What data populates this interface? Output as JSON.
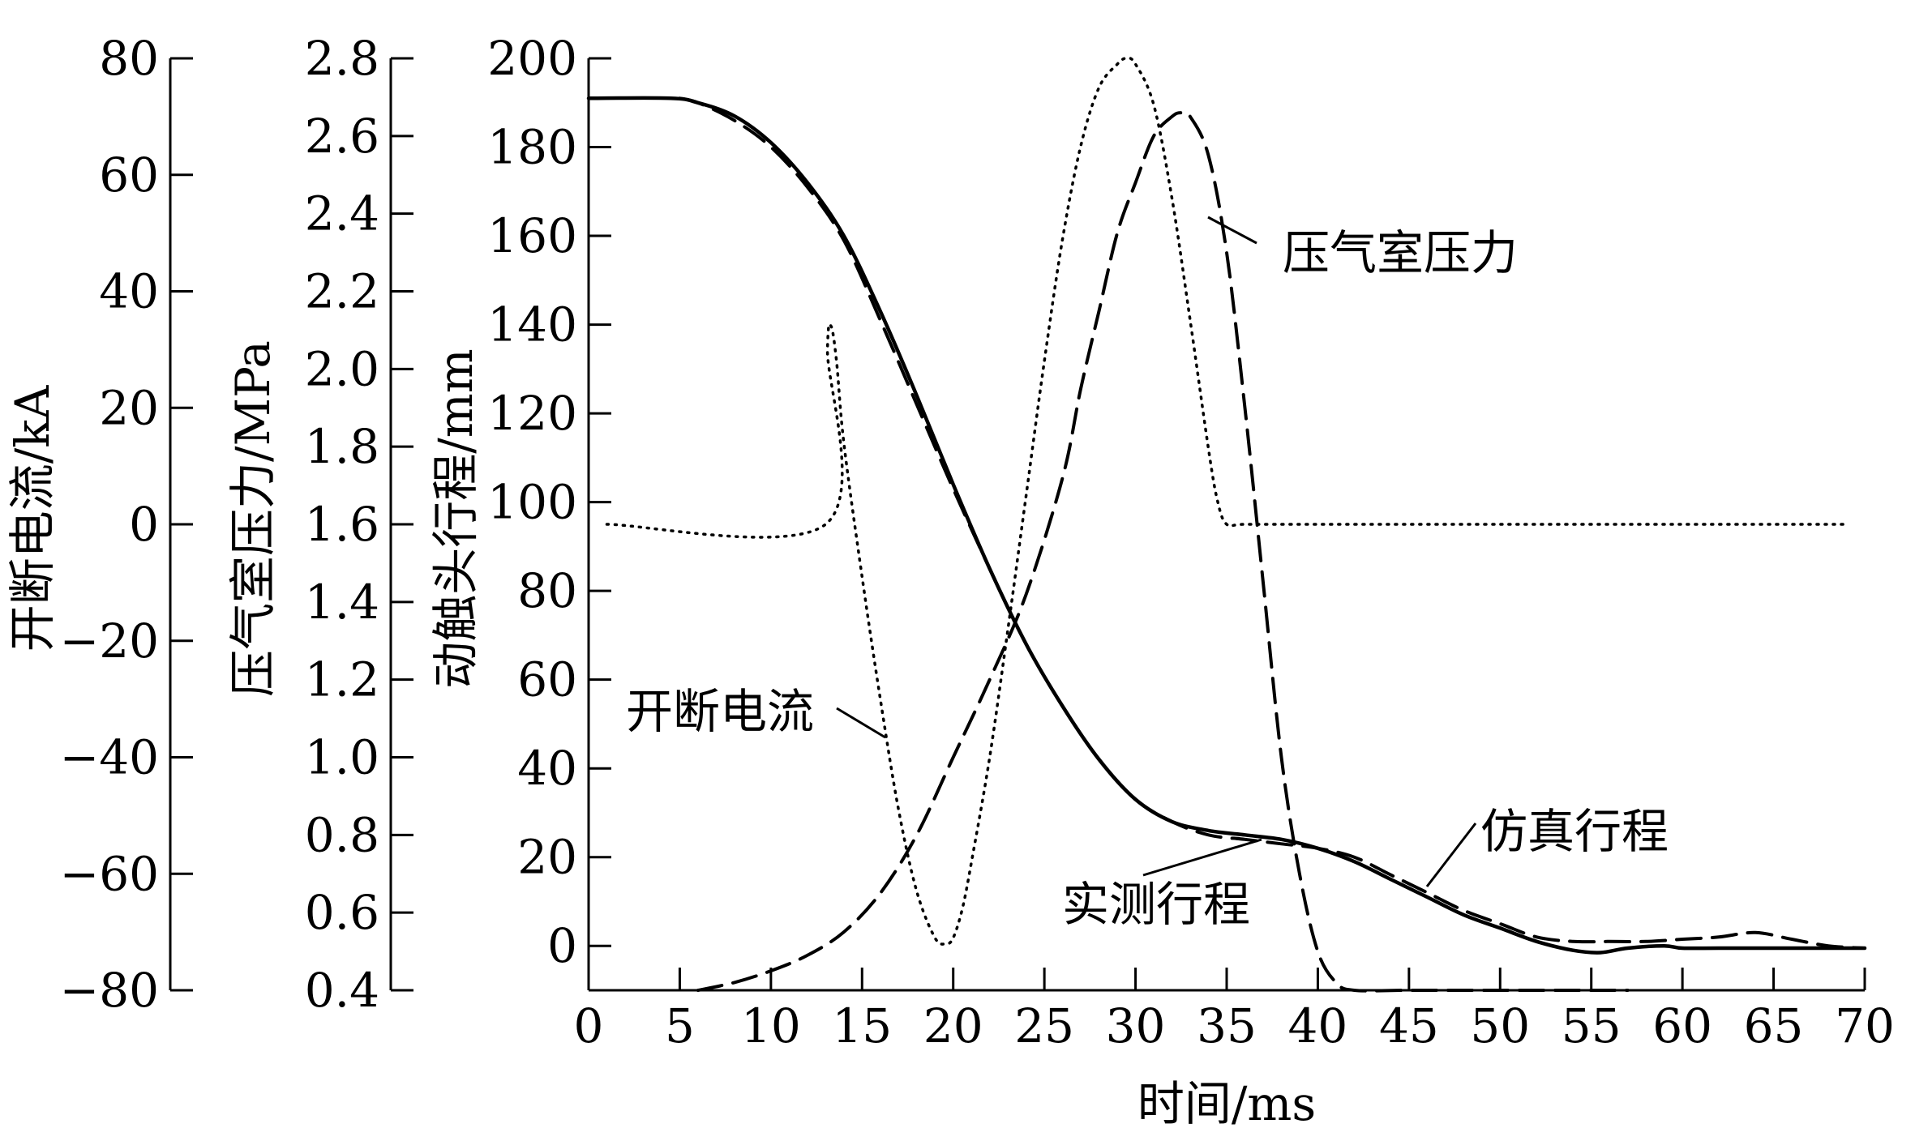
{
  "chart_data": {
    "type": "line",
    "xlabel": "时间/ms",
    "xlim": [
      0,
      70
    ],
    "xticks": [
      0,
      5,
      10,
      15,
      20,
      25,
      30,
      35,
      40,
      45,
      50,
      55,
      60,
      65,
      70
    ],
    "axes": {
      "current": {
        "label": "开断电流/kA",
        "range": [
          -80,
          80
        ],
        "ticks": [
          80,
          60,
          40,
          20,
          0,
          -20,
          -40,
          -60,
          -80
        ],
        "tick_labels": [
          "80",
          "60",
          "40",
          "20",
          "0",
          "−20",
          "−40",
          "−60",
          "−80"
        ]
      },
      "pressure": {
        "label": "压气室压力/MPa",
        "range": [
          0.4,
          2.8
        ],
        "ticks": [
          2.8,
          2.6,
          2.4,
          2.2,
          2.0,
          1.8,
          1.6,
          1.4,
          1.2,
          1.0,
          0.8,
          0.6,
          0.4
        ],
        "tick_labels": [
          "2.8",
          "2.6",
          "2.4",
          "2.2",
          "2.0",
          "1.8",
          "1.6",
          "1.4",
          "1.2",
          "1.0",
          "0.8",
          "0.6",
          "0.4"
        ]
      },
      "travel": {
        "label": "动触头行程/mm",
        "range": [
          -10,
          200
        ],
        "ticks": [
          200,
          180,
          160,
          140,
          120,
          100,
          80,
          60,
          40,
          20,
          0
        ],
        "tick_labels": [
          "200",
          "180",
          "160",
          "140",
          "120",
          "100",
          "80",
          "60",
          "40",
          "20",
          "0"
        ]
      }
    },
    "series": [
      {
        "name": "仿真行程",
        "axis": "travel",
        "style": "solid",
        "x": [
          0,
          4.5,
          6,
          8,
          10,
          12,
          14,
          16,
          18,
          20,
          22,
          24,
          26,
          28,
          30,
          32,
          34,
          36,
          38,
          40,
          42,
          44,
          46,
          48,
          50,
          52,
          54,
          55.5,
          57,
          59,
          60,
          62,
          65,
          68,
          70
        ],
        "y": [
          191,
          191,
          190,
          187,
          181,
          172,
          160,
          143,
          124,
          104,
          85,
          68,
          54,
          42,
          33,
          28,
          26,
          25,
          24,
          22,
          19,
          15,
          11,
          7,
          4,
          1,
          -1,
          -1.5,
          -0.5,
          0,
          -0.5,
          -0.5,
          -0.5,
          -0.5,
          -0.5
        ]
      },
      {
        "name": "实测行程",
        "axis": "travel",
        "style": "dashed",
        "x": [
          5,
          6,
          8,
          10,
          12,
          14,
          16,
          18,
          20,
          22,
          24,
          26,
          28,
          30,
          32,
          34,
          36,
          38,
          40,
          42,
          44,
          46,
          48,
          50,
          52,
          54,
          56,
          58,
          60,
          62,
          64,
          66,
          68,
          70
        ],
        "y": [
          191,
          190,
          186,
          180,
          171,
          159,
          141,
          122,
          103,
          85,
          68,
          54,
          42,
          33,
          28,
          25,
          24,
          23,
          22,
          20,
          16,
          12,
          8,
          5,
          2,
          1,
          1,
          1,
          1.5,
          2,
          3,
          1.5,
          0,
          -0.5
        ]
      },
      {
        "name": "压气室压力",
        "axis": "pressure",
        "style": "dashed",
        "x": [
          6,
          8,
          10,
          12,
          14,
          16,
          18,
          20,
          22,
          24,
          26,
          27,
          28,
          29,
          30,
          31,
          32,
          32.5,
          33,
          34,
          35,
          36,
          37,
          38,
          39,
          40,
          41,
          42,
          45,
          50,
          55,
          57
        ],
        "y": [
          0.4,
          0.42,
          0.45,
          0.49,
          0.55,
          0.65,
          0.8,
          1.0,
          1.2,
          1.42,
          1.72,
          1.95,
          2.15,
          2.35,
          2.48,
          2.6,
          2.65,
          2.66,
          2.65,
          2.55,
          2.3,
          1.9,
          1.45,
          1.0,
          0.7,
          0.5,
          0.42,
          0.4,
          0.4,
          0.4,
          0.4,
          0.4
        ]
      },
      {
        "name": "开断电流",
        "axis": "current",
        "style": "dotted",
        "x": [
          1,
          13,
          13.1,
          13.3,
          13.6,
          14,
          15,
          16,
          17,
          18,
          19,
          19.6,
          20,
          20.5,
          21,
          22,
          23,
          24,
          25,
          26,
          27,
          28,
          29,
          29.5,
          30,
          31,
          32,
          33,
          34,
          34.5,
          35,
          36,
          40,
          50,
          60,
          69
        ],
        "y": [
          0,
          0,
          30,
          34,
          28,
          14,
          -9,
          -30,
          -49,
          -63,
          -71,
          -72,
          -71,
          -66,
          -58,
          -40,
          -18,
          5,
          28,
          49,
          65,
          75,
          79,
          80,
          79,
          72,
          56,
          35,
          13,
          4,
          0,
          0,
          0,
          0,
          0,
          0
        ]
      }
    ],
    "annotations": [
      {
        "text": "压气室压力",
        "series": "压气室压力"
      },
      {
        "text": "开断电流",
        "series": "开断电流"
      },
      {
        "text": "仿真行程",
        "series": "仿真行程"
      },
      {
        "text": "实测行程",
        "series": "实测行程"
      }
    ],
    "grid": false,
    "legend": "none"
  }
}
